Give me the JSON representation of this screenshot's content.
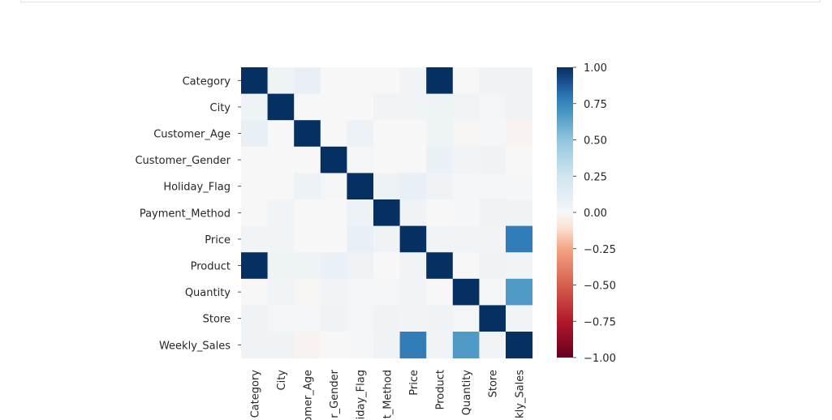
{
  "chart_data": {
    "type": "heatmap",
    "title": "",
    "xlabel": "",
    "ylabel": "",
    "categories": [
      "Category",
      "City",
      "Customer_Age",
      "Customer_Gender",
      "Holiday_Flag",
      "Payment_Method",
      "Price",
      "Product",
      "Quantity",
      "Store",
      "Weekly_Sales"
    ],
    "x_tick_labels": [
      "Category",
      "City",
      "omer_Age",
      "r_Gender",
      "iday_Flag",
      "t_Method",
      "Price",
      "Product",
      "Quantity",
      "Store",
      "kly_Sales"
    ],
    "matrix": [
      [
        1.0,
        0.05,
        0.08,
        0.0,
        0.0,
        0.0,
        0.03,
        1.0,
        0.0,
        0.04,
        0.04
      ],
      [
        0.05,
        1.0,
        0.0,
        0.0,
        0.0,
        0.03,
        0.03,
        0.05,
        0.03,
        0.02,
        0.04
      ],
      [
        0.08,
        0.0,
        1.0,
        0.0,
        0.06,
        0.0,
        0.0,
        0.05,
        -0.01,
        0.01,
        -0.02
      ],
      [
        0.0,
        0.0,
        0.0,
        1.0,
        0.02,
        0.0,
        0.0,
        0.07,
        0.03,
        0.04,
        0.0
      ],
      [
        0.0,
        0.0,
        0.06,
        0.02,
        1.0,
        0.06,
        0.08,
        0.04,
        0.01,
        0.02,
        0.01
      ],
      [
        0.0,
        0.03,
        0.0,
        0.0,
        0.06,
        1.0,
        0.04,
        0.0,
        0.01,
        0.04,
        0.04
      ],
      [
        0.03,
        0.03,
        0.0,
        0.0,
        0.08,
        0.04,
        1.0,
        0.03,
        0.03,
        0.03,
        0.78
      ],
      [
        1.0,
        0.05,
        0.05,
        0.07,
        0.04,
        0.0,
        0.03,
        1.0,
        0.0,
        0.04,
        0.03
      ],
      [
        0.0,
        0.03,
        -0.01,
        0.03,
        0.01,
        0.01,
        0.03,
        0.0,
        1.0,
        0.02,
        0.67
      ],
      [
        0.04,
        0.02,
        0.01,
        0.04,
        0.02,
        0.04,
        0.03,
        0.04,
        0.02,
        1.0,
        0.03
      ],
      [
        0.04,
        0.04,
        -0.02,
        0.0,
        0.01,
        0.04,
        0.78,
        0.03,
        0.67,
        0.03,
        1.0
      ]
    ],
    "vmin": -1.0,
    "vmax": 1.0,
    "colormap": "RdBu_r",
    "colorbar_ticks": [
      "1.00",
      "0.75",
      "0.50",
      "0.25",
      "0.00",
      "−0.25",
      "−0.50",
      "−0.75",
      "−1.00"
    ],
    "colorbar_tick_values": [
      1.0,
      0.75,
      0.5,
      0.25,
      0.0,
      -0.25,
      -0.5,
      -0.75,
      -1.0
    ],
    "colorbar_stops": [
      {
        "v": -1.0,
        "color": "#67001f"
      },
      {
        "v": -0.75,
        "color": "#b2182b"
      },
      {
        "v": -0.5,
        "color": "#d6604d"
      },
      {
        "v": -0.25,
        "color": "#f4a582"
      },
      {
        "v": -0.1,
        "color": "#fbe3d6"
      },
      {
        "v": 0.0,
        "color": "#f7f7f7"
      },
      {
        "v": 0.1,
        "color": "#e4eef5"
      },
      {
        "v": 0.25,
        "color": "#d1e5f0"
      },
      {
        "v": 0.5,
        "color": "#92c5de"
      },
      {
        "v": 0.7,
        "color": "#4393c3"
      },
      {
        "v": 0.8,
        "color": "#2e78b5"
      },
      {
        "v": 0.9,
        "color": "#1b4f90"
      },
      {
        "v": 1.0,
        "color": "#053061"
      }
    ]
  }
}
